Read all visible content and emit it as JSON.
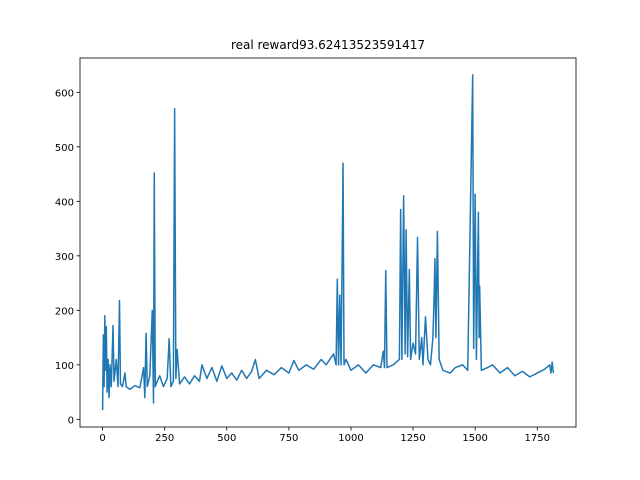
{
  "chart_data": {
    "type": "line",
    "title": "real reward93.62413523591417",
    "x": [
      0,
      3,
      6,
      9,
      12,
      15,
      18,
      22,
      26,
      30,
      35,
      42,
      46,
      55,
      62,
      68,
      72,
      80,
      90,
      95,
      110,
      130,
      150,
      165,
      170,
      175,
      180,
      190,
      200,
      205,
      208,
      212,
      220,
      230,
      245,
      260,
      268,
      275,
      285,
      290,
      295,
      300,
      310,
      330,
      350,
      370,
      390,
      400,
      420,
      440,
      460,
      480,
      500,
      520,
      540,
      560,
      580,
      600,
      615,
      630,
      660,
      690,
      720,
      750,
      770,
      790,
      820,
      850,
      880,
      900,
      930,
      940,
      945,
      950,
      955,
      960,
      965,
      968,
      972,
      980,
      1000,
      1030,
      1060,
      1090,
      1120,
      1130,
      1135,
      1140,
      1145,
      1170,
      1195,
      1200,
      1205,
      1212,
      1218,
      1222,
      1228,
      1235,
      1240,
      1250,
      1260,
      1268,
      1275,
      1285,
      1290,
      1300,
      1310,
      1320,
      1330,
      1335,
      1338,
      1342,
      1348,
      1355,
      1370,
      1400,
      1420,
      1450,
      1470,
      1490,
      1494,
      1500,
      1505,
      1513,
      1516,
      1518,
      1525,
      1550,
      1570,
      1600,
      1630,
      1660,
      1690,
      1720,
      1750,
      1780,
      1800,
      1805,
      1810,
      1815
    ],
    "series": [
      {
        "color": "#1f77b4",
        "values": [
          17,
          155,
          60,
          190,
          90,
          170,
          50,
          110,
          40,
          100,
          60,
          172,
          70,
          110,
          60,
          218,
          65,
          60,
          85,
          60,
          55,
          62,
          58,
          95,
          40,
          158,
          60,
          80,
          200,
          30,
          452,
          60,
          70,
          80,
          60,
          75,
          148,
          60,
          70,
          570,
          75,
          128,
          65,
          78,
          65,
          80,
          70,
          100,
          75,
          95,
          70,
          98,
          75,
          85,
          72,
          90,
          75,
          88,
          110,
          75,
          90,
          82,
          95,
          85,
          108,
          90,
          100,
          92,
          110,
          100,
          120,
          100,
          257,
          100,
          228,
          100,
          318,
          470,
          100,
          110,
          90,
          100,
          85,
          100,
          95,
          125,
          95,
          273,
          95,
          100,
          110,
          385,
          110,
          410,
          120,
          348,
          115,
          275,
          110,
          140,
          120,
          334,
          110,
          150,
          100,
          188,
          110,
          100,
          150,
          230,
          295,
          150,
          345,
          110,
          90,
          85,
          95,
          100,
          90,
          632,
          130,
          413,
          110,
          380,
          150,
          245,
          90,
          95,
          100,
          85,
          95,
          80,
          88,
          78,
          85,
          92,
          100,
          85,
          105,
          85
        ]
      }
    ],
    "xlim": [
      -91,
      1906
    ],
    "ylim": [
      -14,
      663
    ],
    "xticks": [
      0,
      250,
      500,
      750,
      1000,
      1250,
      1500,
      1750
    ],
    "yticks": [
      0,
      100,
      200,
      300,
      400,
      500,
      600
    ]
  }
}
